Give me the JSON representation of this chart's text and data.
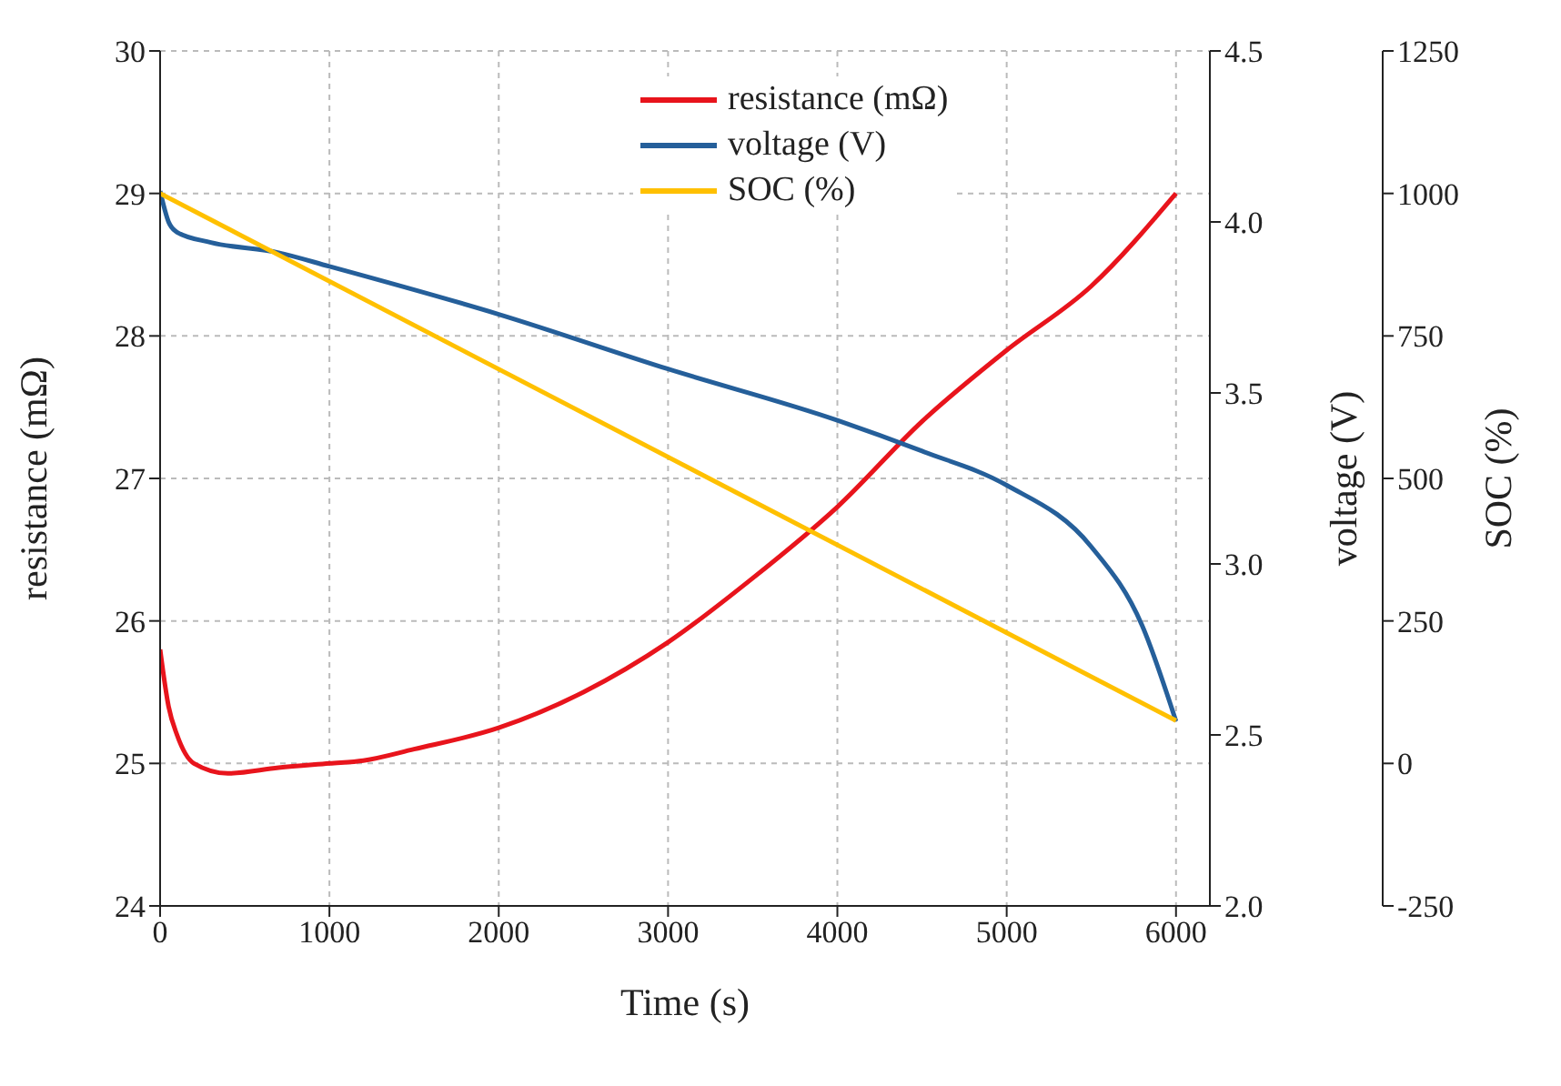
{
  "chart_data": {
    "type": "line",
    "xlabel": "Time (s)",
    "ylabel": "resistance (mΩ)",
    "y2label": "voltage (V)",
    "y3label": "SOC (%)",
    "xlim": [
      0,
      6200
    ],
    "xticks": [
      0,
      1000,
      2000,
      3000,
      4000,
      5000,
      6000
    ],
    "ylim": [
      24,
      30
    ],
    "yticks": [
      24,
      25,
      26,
      27,
      28,
      29,
      30
    ],
    "y2lim": [
      2.0,
      4.5
    ],
    "y2ticks": [
      {
        "value": 2.0,
        "label": "2.0"
      },
      {
        "value": 2.5,
        "label": "2.5"
      },
      {
        "value": 3.0,
        "label": "3.0"
      },
      {
        "value": 3.5,
        "label": "3.5"
      },
      {
        "value": 4.0,
        "label": "4.0"
      },
      {
        "value": 4.5,
        "label": "4.5"
      }
    ],
    "y3lim": [
      -250,
      1250
    ],
    "y3ticks": [
      -250,
      0,
      250,
      500,
      750,
      1000,
      1250
    ],
    "grid": true,
    "legend": "top right",
    "marker": "none",
    "line_style": "solid",
    "series": [
      {
        "name": "resistance (mΩ)",
        "color": "#e8141c",
        "x": [
          0,
          50,
          100,
          200,
          400,
          700,
          1000,
          1200,
          1500,
          2000,
          2500,
          3000,
          3500,
          4000,
          4500,
          5000,
          5500,
          6000
        ],
        "values": [
          25.8,
          25.4,
          25.2,
          25.0,
          24.93,
          24.97,
          25.0,
          25.02,
          25.1,
          25.25,
          25.5,
          25.85,
          26.3,
          26.8,
          27.4,
          27.9,
          28.35,
          29.0
        ]
      },
      {
        "name": "voltage (V)",
        "color": "#255f9a",
        "axis": "y2",
        "x": [
          0,
          50,
          100,
          300,
          700,
          1000,
          2000,
          3000,
          4000,
          4500,
          5000,
          5500,
          5800,
          6000
        ],
        "values": [
          4.09,
          4.0,
          3.97,
          3.94,
          3.91,
          3.87,
          3.73,
          3.57,
          3.42,
          3.33,
          3.23,
          3.05,
          2.82,
          2.54
        ]
      },
      {
        "name": "SOC (%)",
        "color": "#ffc000",
        "axis": "y3",
        "x": [
          0,
          6000
        ],
        "values": [
          1000,
          75
        ]
      }
    ]
  }
}
